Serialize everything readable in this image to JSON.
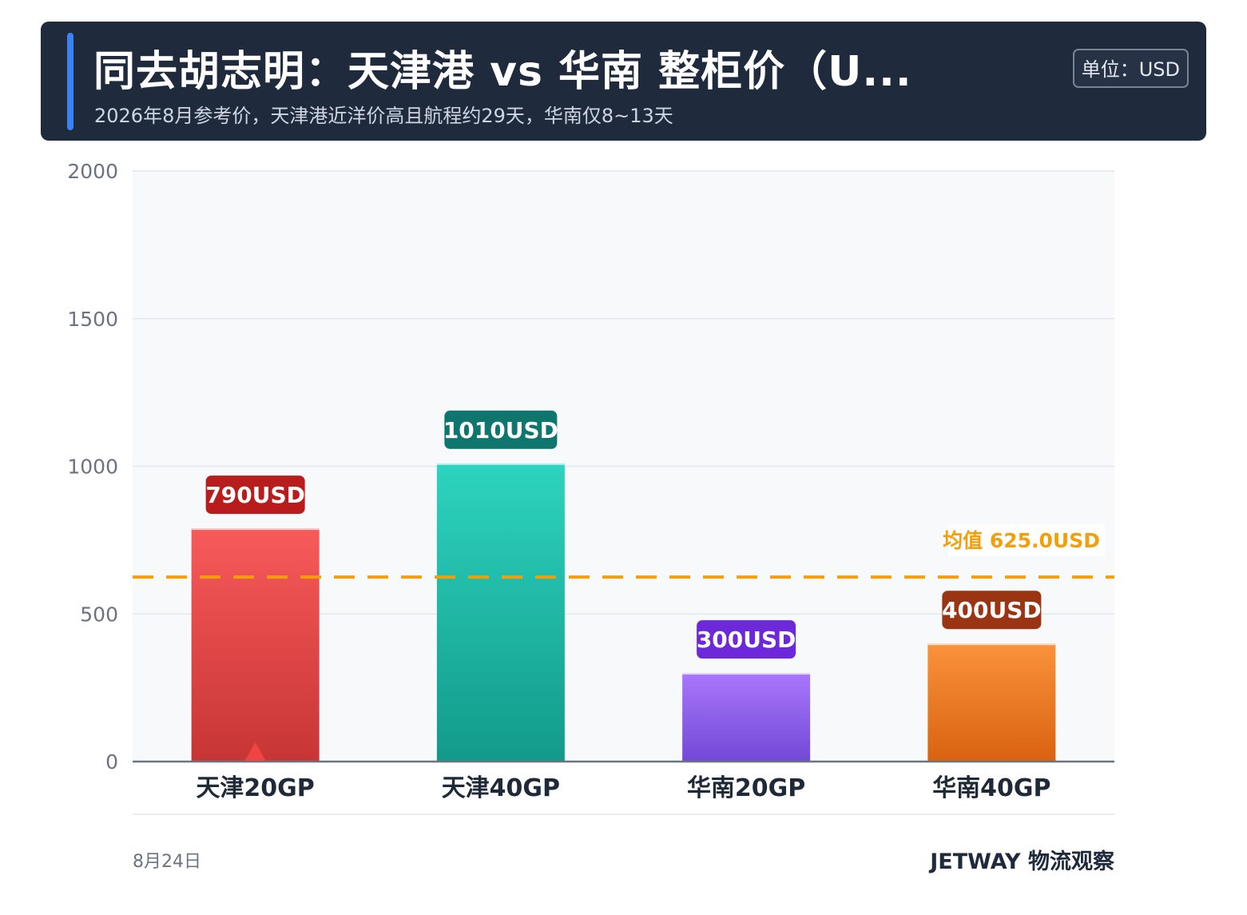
{
  "header": {
    "title": "同去胡志明：天津港 vs 华南 整柜价（U...",
    "subtitle": "2026年8月参考价，天津港近洋价高且航程约29天，华南仅8~13天",
    "unit_badge": "单位：USD"
  },
  "chart_data": {
    "type": "bar",
    "categories": [
      "天津20GP",
      "天津40GP",
      "华南20GP",
      "华南40GP"
    ],
    "values": [
      790,
      1010,
      300,
      400
    ],
    "value_labels": [
      "790USD",
      "1010USD",
      "300USD",
      "400USD"
    ],
    "ylim": [
      0,
      2000
    ],
    "yticks": [
      0,
      500,
      1000,
      1500,
      2000
    ],
    "grid": true,
    "bar_colors": [
      {
        "top": "#f85a5a",
        "bottom": "#c73535",
        "label_bg": "#b91c1c"
      },
      {
        "top": "#2dd4bf",
        "bottom": "#129a8a",
        "label_bg": "#0f766e"
      },
      {
        "top": "#a878fb",
        "bottom": "#7248d6",
        "label_bg": "#6d28d9"
      },
      {
        "top": "#fb923c",
        "bottom": "#d9620f",
        "label_bg": "#9a3412"
      }
    ],
    "mean": {
      "value": 625,
      "label": "均值 625.0USD",
      "color": "#f59e0b"
    },
    "marker": {
      "category": "天津20GP",
      "shape": "triangle",
      "color": "#ef4444"
    }
  },
  "footer": {
    "date": "8月24日",
    "brand": "JETWAY 物流观察"
  }
}
